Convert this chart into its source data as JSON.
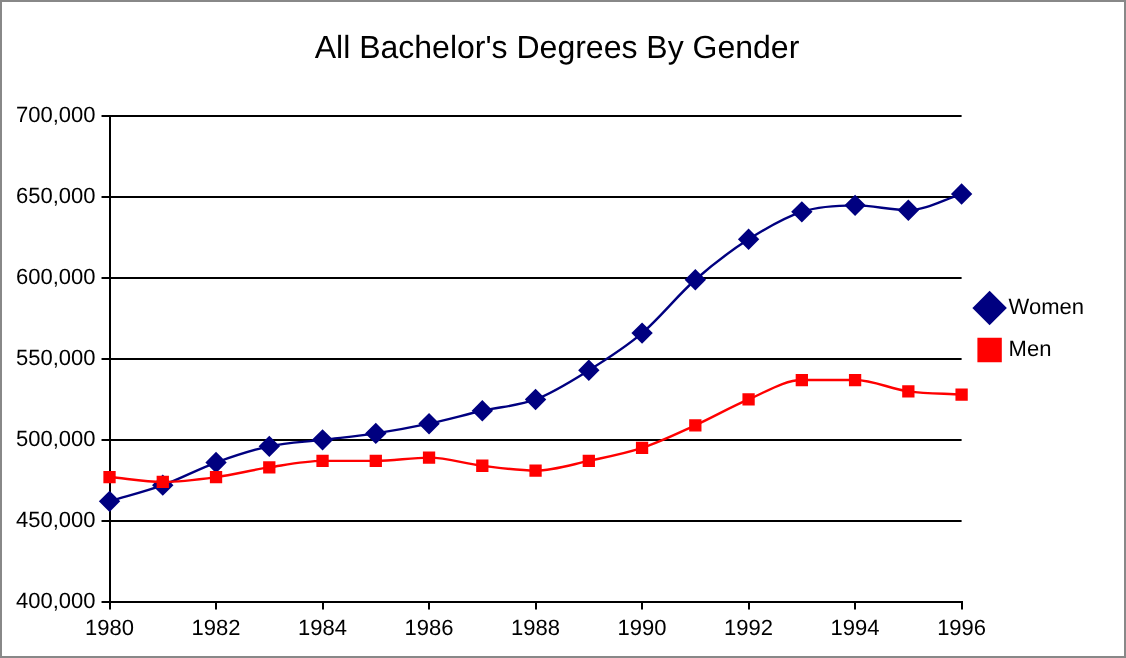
{
  "chart_data": {
    "type": "line",
    "title": "All Bachelor's Degrees By Gender",
    "x": [
      1980,
      1981,
      1982,
      1983,
      1984,
      1985,
      1986,
      1987,
      1988,
      1989,
      1990,
      1991,
      1992,
      1993,
      1994,
      1995,
      1996
    ],
    "series": [
      {
        "name": "Women",
        "color": "#000080",
        "marker": "diamond",
        "values": [
          462000,
          472000,
          486000,
          496000,
          500000,
          504000,
          510000,
          518000,
          525000,
          543000,
          566000,
          599000,
          624000,
          641000,
          645000,
          642000,
          652000
        ]
      },
      {
        "name": "Men",
        "color": "#ff0000",
        "marker": "square",
        "values": [
          477000,
          474000,
          477000,
          483000,
          487000,
          487000,
          489000,
          484000,
          481000,
          487000,
          495000,
          509000,
          525000,
          537000,
          537000,
          530000,
          528000
        ]
      }
    ],
    "xlim": [
      1980,
      1996
    ],
    "xticks": [
      1980,
      1982,
      1984,
      1986,
      1988,
      1990,
      1992,
      1994,
      1996
    ],
    "ylim": [
      400000,
      700000
    ],
    "yticks": [
      {
        "value": 400000,
        "label": "400,000"
      },
      {
        "value": 450000,
        "label": "450,000"
      },
      {
        "value": 500000,
        "label": "500,000"
      },
      {
        "value": 550000,
        "label": "550,000"
      },
      {
        "value": 600000,
        "label": "600,000"
      },
      {
        "value": 650000,
        "label": "650,000"
      },
      {
        "value": 700000,
        "label": "700,000"
      }
    ],
    "grid": "y",
    "legend": "right"
  }
}
